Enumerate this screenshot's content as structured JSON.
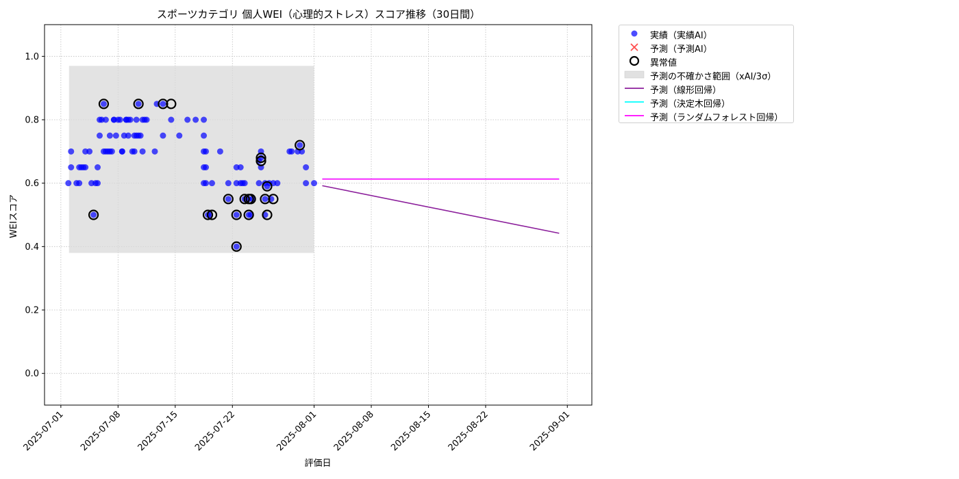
{
  "chart_data": {
    "type": "scatter",
    "title": "スポーツカテゴリ 個人WEI（心理的ストレス）スコア推移（30日間）",
    "xlabel": "評価日",
    "ylabel": "WEIスコア",
    "xlim": [
      "2025-06-29",
      "2025-09-04"
    ],
    "ylim": [
      -0.1,
      1.1
    ],
    "grid": true,
    "legend_position": "outside-right",
    "x_ticks": [
      "2025-07-01",
      "2025-07-08",
      "2025-07-15",
      "2025-07-22",
      "2025-08-01",
      "2025-08-08",
      "2025-08-15",
      "2025-08-22",
      "2025-09-01"
    ],
    "y_ticks": [
      "0.0",
      "0.2",
      "0.4",
      "0.6",
      "0.8",
      "1.0"
    ],
    "colors": {
      "actual": "#0000ff",
      "predicted": "#ff4d4d",
      "anomaly": "#000000",
      "band": "#d9d9d9",
      "linear": "#8b1e9b",
      "tree": "#00ffff",
      "forest": "#ff00ff"
    },
    "legend": [
      {
        "key": "actual",
        "label": "実績（実績AI）"
      },
      {
        "key": "predicted",
        "label": "予測（予測AI）"
      },
      {
        "key": "anomaly",
        "label": "異常値"
      },
      {
        "key": "band",
        "label": "予測の不確かさ範囲（xAI/3σ）"
      },
      {
        "key": "linear",
        "label": "予測（線形回帰）"
      },
      {
        "key": "tree",
        "label": "予測（決定木回帰）"
      },
      {
        "key": "forest",
        "label": "予測（ランダムフォレスト回帰）"
      }
    ],
    "uncertainty_band": {
      "x_start": "2025-07-02",
      "x_end": "2025-08-01",
      "y_low": 0.38,
      "y_high": 0.97
    },
    "series": [
      {
        "name": "実績（実績AI）",
        "points": [
          [
            "2025-07-01 22:00",
            0.6
          ],
          [
            "2025-07-02 06:00",
            0.65
          ],
          [
            "2025-07-02 06:00",
            0.7
          ],
          [
            "2025-07-02 22:00",
            0.6
          ],
          [
            "2025-07-03 06:00",
            0.6
          ],
          [
            "2025-07-03 06:00",
            0.65
          ],
          [
            "2025-07-03 12:00",
            0.65
          ],
          [
            "2025-07-03 18:00",
            0.65
          ],
          [
            "2025-07-04 00:00",
            0.65
          ],
          [
            "2025-07-04 00:00",
            0.7
          ],
          [
            "2025-07-04 12:00",
            0.7
          ],
          [
            "2025-07-04 18:00",
            0.6
          ],
          [
            "2025-07-05 00:00",
            0.5
          ],
          [
            "2025-07-05 06:00",
            0.6
          ],
          [
            "2025-07-05 12:00",
            0.6
          ],
          [
            "2025-07-05 12:00",
            0.65
          ],
          [
            "2025-07-05 18:00",
            0.75
          ],
          [
            "2025-07-05 18:00",
            0.8
          ],
          [
            "2025-07-06 00:00",
            0.8
          ],
          [
            "2025-07-06 06:00",
            0.85
          ],
          [
            "2025-07-06 06:00",
            0.7
          ],
          [
            "2025-07-06 12:00",
            0.7
          ],
          [
            "2025-07-06 12:00",
            0.8
          ],
          [
            "2025-07-06 18:00",
            0.7
          ],
          [
            "2025-07-07 00:00",
            0.75
          ],
          [
            "2025-07-07 00:00",
            0.7
          ],
          [
            "2025-07-07 06:00",
            0.7
          ],
          [
            "2025-07-07 12:00",
            0.8
          ],
          [
            "2025-07-07 12:00",
            0.8
          ],
          [
            "2025-07-07 18:00",
            0.75
          ],
          [
            "2025-07-08 00:00",
            0.8
          ],
          [
            "2025-07-08 06:00",
            0.8
          ],
          [
            "2025-07-08 12:00",
            0.7
          ],
          [
            "2025-07-08 12:00",
            0.7
          ],
          [
            "2025-07-08 18:00",
            0.75
          ],
          [
            "2025-07-09 00:00",
            0.8
          ],
          [
            "2025-07-09 00:00",
            0.8
          ],
          [
            "2025-07-09 06:00",
            0.75
          ],
          [
            "2025-07-09 06:00",
            0.8
          ],
          [
            "2025-07-09 12:00",
            0.8
          ],
          [
            "2025-07-09 18:00",
            0.7
          ],
          [
            "2025-07-10 00:00",
            0.7
          ],
          [
            "2025-07-10 00:00",
            0.75
          ],
          [
            "2025-07-10 06:00",
            0.75
          ],
          [
            "2025-07-10 06:00",
            0.8
          ],
          [
            "2025-07-10 12:00",
            0.85
          ],
          [
            "2025-07-10 12:00",
            0.75
          ],
          [
            "2025-07-10 18:00",
            0.75
          ],
          [
            "2025-07-11 00:00",
            0.8
          ],
          [
            "2025-07-11 00:00",
            0.7
          ],
          [
            "2025-07-11 06:00",
            0.8
          ],
          [
            "2025-07-11 12:00",
            0.8
          ],
          [
            "2025-07-12 12:00",
            0.7
          ],
          [
            "2025-07-12 18:00",
            0.85
          ],
          [
            "2025-07-13 12:00",
            0.85
          ],
          [
            "2025-07-13 12:00",
            0.75
          ],
          [
            "2025-07-14 12:00",
            0.8
          ],
          [
            "2025-07-15 12:00",
            0.75
          ],
          [
            "2025-07-16 12:00",
            0.8
          ],
          [
            "2025-07-17 12:00",
            0.8
          ],
          [
            "2025-07-18 12:00",
            0.6
          ],
          [
            "2025-07-18 12:00",
            0.65
          ],
          [
            "2025-07-18 12:00",
            0.7
          ],
          [
            "2025-07-18 12:00",
            0.75
          ],
          [
            "2025-07-18 12:00",
            0.8
          ],
          [
            "2025-07-18 18:00",
            0.6
          ],
          [
            "2025-07-18 18:00",
            0.65
          ],
          [
            "2025-07-18 18:00",
            0.7
          ],
          [
            "2025-07-19 00:00",
            0.5
          ],
          [
            "2025-07-19 06:00",
            0.5
          ],
          [
            "2025-07-19 12:00",
            0.6
          ],
          [
            "2025-07-20 12:00",
            0.7
          ],
          [
            "2025-07-21 12:00",
            0.55
          ],
          [
            "2025-07-21 12:00",
            0.6
          ],
          [
            "2025-07-22 12:00",
            0.5
          ],
          [
            "2025-07-22 12:00",
            0.6
          ],
          [
            "2025-07-22 12:00",
            0.65
          ],
          [
            "2025-07-22 12:00",
            0.4
          ],
          [
            "2025-07-23 00:00",
            0.6
          ],
          [
            "2025-07-23 00:00",
            0.65
          ],
          [
            "2025-07-23 06:00",
            0.6
          ],
          [
            "2025-07-23 12:00",
            0.55
          ],
          [
            "2025-07-23 12:00",
            0.6
          ],
          [
            "2025-07-24 00:00",
            0.55
          ],
          [
            "2025-07-24 00:00",
            0.5
          ],
          [
            "2025-07-24 06:00",
            0.5
          ],
          [
            "2025-07-24 12:00",
            0.55
          ],
          [
            "2025-07-25 06:00",
            0.6
          ],
          [
            "2025-07-25 06:00",
            0.67
          ],
          [
            "2025-07-25 12:00",
            0.65
          ],
          [
            "2025-07-25 12:00",
            0.68
          ],
          [
            "2025-07-25 12:00",
            0.7
          ],
          [
            "2025-07-26 00:00",
            0.6
          ],
          [
            "2025-07-26 00:00",
            0.55
          ],
          [
            "2025-07-26 00:00",
            0.5
          ],
          [
            "2025-07-26 06:00",
            0.59
          ],
          [
            "2025-07-26 12:00",
            0.6
          ],
          [
            "2025-07-26 18:00",
            0.55
          ],
          [
            "2025-07-27 00:00",
            0.6
          ],
          [
            "2025-07-27 12:00",
            0.6
          ],
          [
            "2025-07-29 00:00",
            0.7
          ],
          [
            "2025-07-29 06:00",
            0.7
          ],
          [
            "2025-07-30 00:00",
            0.7
          ],
          [
            "2025-07-30 06:00",
            0.72
          ],
          [
            "2025-07-30 12:00",
            0.7
          ],
          [
            "2025-07-31 00:00",
            0.6
          ],
          [
            "2025-07-31 00:00",
            0.65
          ],
          [
            "2025-08-01 00:00",
            0.6
          ]
        ]
      },
      {
        "name": "異常値",
        "points": [
          [
            "2025-07-05 00:00",
            0.5
          ],
          [
            "2025-07-06 06:00",
            0.85
          ],
          [
            "2025-07-10 12:00",
            0.85
          ],
          [
            "2025-07-13 12:00",
            0.85
          ],
          [
            "2025-07-14 12:00",
            0.85
          ],
          [
            "2025-07-19 00:00",
            0.5
          ],
          [
            "2025-07-19 12:00",
            0.5
          ],
          [
            "2025-07-21 12:00",
            0.55
          ],
          [
            "2025-07-22 12:00",
            0.5
          ],
          [
            "2025-07-22 12:00",
            0.4
          ],
          [
            "2025-07-23 12:00",
            0.55
          ],
          [
            "2025-07-24 00:00",
            0.55
          ],
          [
            "2025-07-24 00:00",
            0.5
          ],
          [
            "2025-07-24 06:00",
            0.55
          ],
          [
            "2025-07-25 12:00",
            0.67
          ],
          [
            "2025-07-25 12:00",
            0.68
          ],
          [
            "2025-07-26 00:00",
            0.55
          ],
          [
            "2025-07-26 06:00",
            0.59
          ],
          [
            "2025-07-26 06:00",
            0.5
          ],
          [
            "2025-07-27 00:00",
            0.55
          ],
          [
            "2025-07-30 06:00",
            0.72
          ]
        ]
      },
      {
        "name": "予測（線形回帰）",
        "line": [
          [
            "2025-08-02",
            0.592
          ],
          [
            "2025-08-31",
            0.442
          ]
        ]
      },
      {
        "name": "予測（決定木回帰）",
        "line": [
          [
            "2025-08-02",
            0.613
          ],
          [
            "2025-08-31",
            0.613
          ]
        ]
      },
      {
        "name": "予測（ランダムフォレスト回帰）",
        "line": [
          [
            "2025-08-02",
            0.613
          ],
          [
            "2025-08-31",
            0.613
          ]
        ]
      }
    ]
  }
}
